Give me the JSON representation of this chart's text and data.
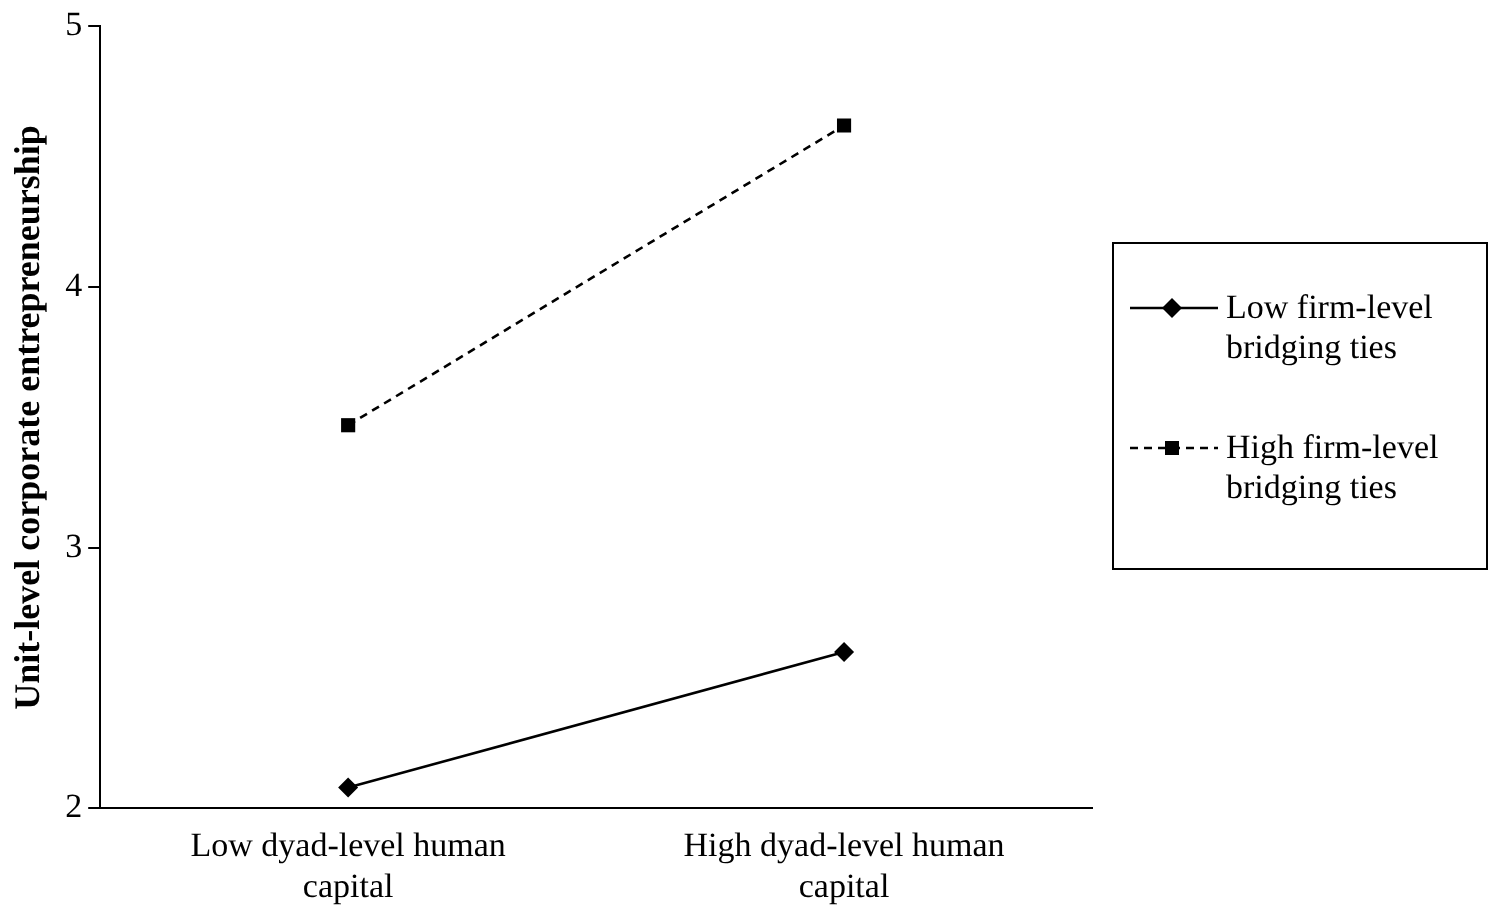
{
  "chart_data": {
    "type": "line",
    "ylabel": "Unit-level corporate entrepreneurship",
    "categories": [
      "Low dyad-level human capital",
      "High dyad-level human capital"
    ],
    "series": [
      {
        "name": "Low firm-level bridging ties",
        "color": "#000000",
        "values": [
          2.08,
          2.6
        ],
        "marker": "diamond",
        "line_style": "solid"
      },
      {
        "name": "High firm-level bridging ties",
        "color": "#000000",
        "values": [
          3.47,
          4.62
        ],
        "marker": "square",
        "line_style": "dashed"
      }
    ],
    "ylim": [
      2,
      5
    ],
    "yticks": [
      2,
      3,
      4,
      5
    ],
    "grid": false,
    "legend": "right"
  }
}
